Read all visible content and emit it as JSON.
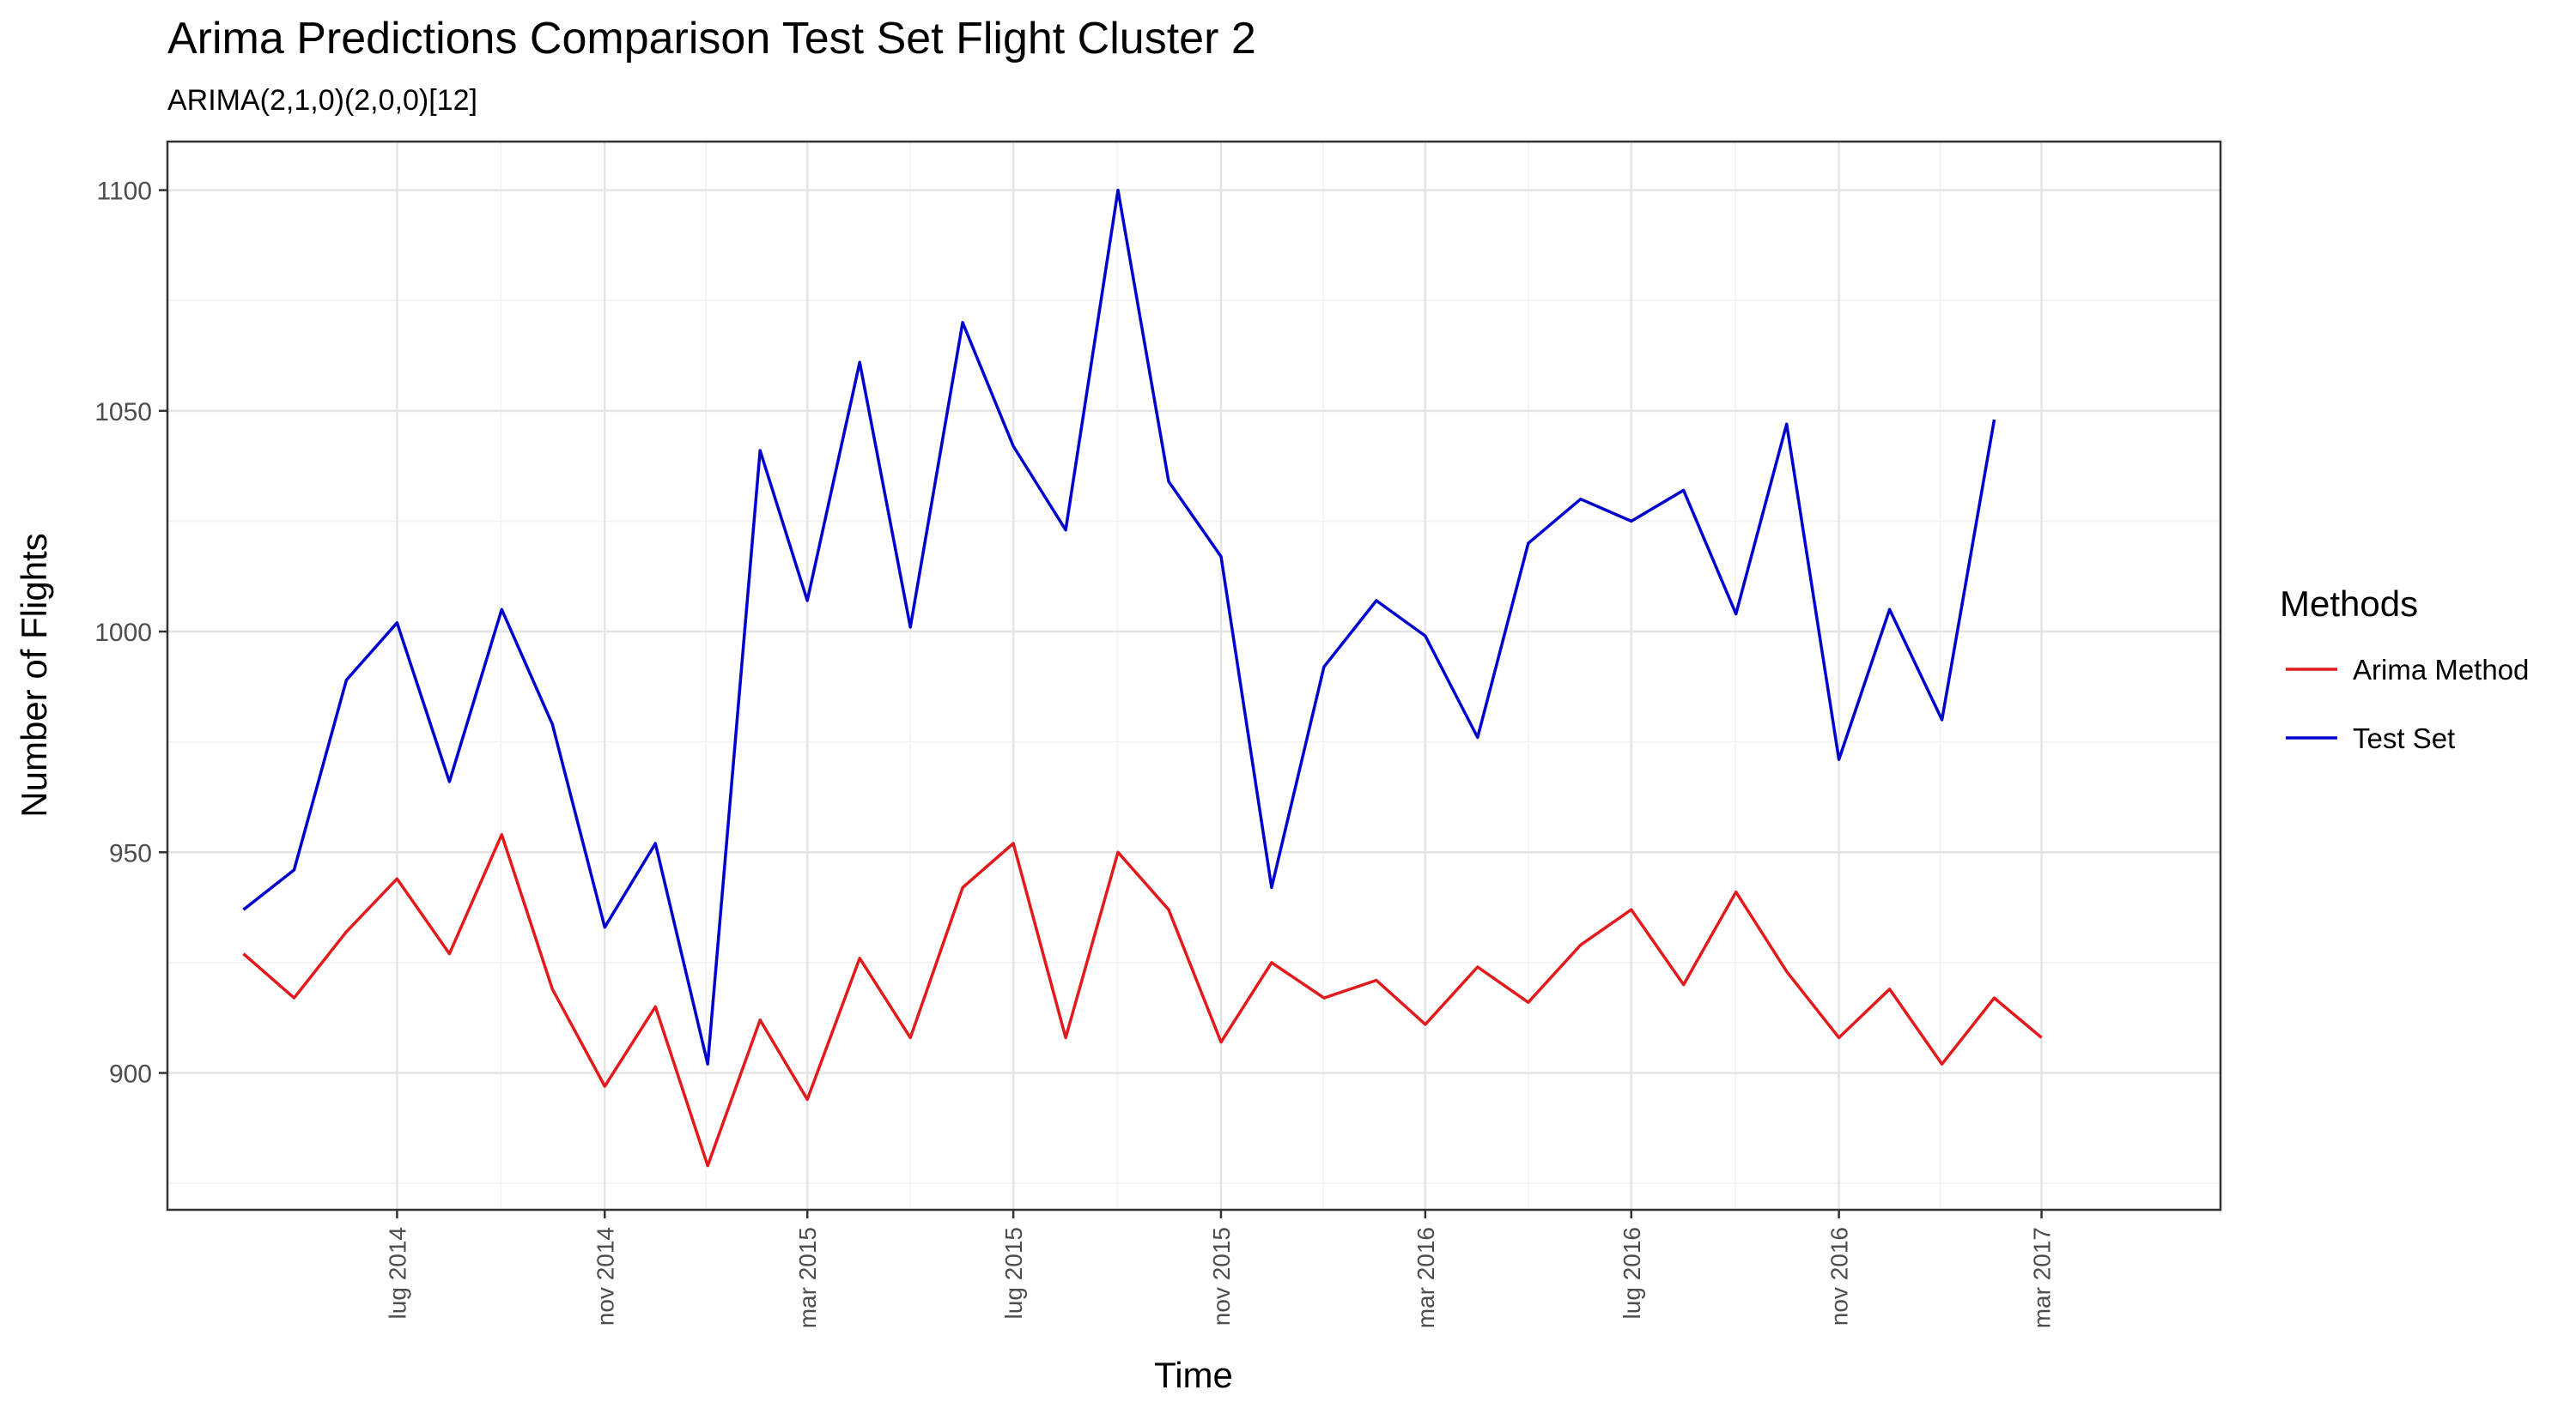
{
  "chart_data": {
    "type": "line",
    "title": "Arima Predictions Comparison Test Set Flight Cluster 2",
    "subtitle": "ARIMA(2,1,0)(2,0,0)[12]",
    "xlabel": "Time",
    "ylabel": "Number of Flights",
    "x_range": [
      "2014-02-15",
      "2017-06-15"
    ],
    "ylim": [
      869,
      1111
    ],
    "y_ticks": [
      900,
      950,
      1000,
      1050,
      1100
    ],
    "x_ticks": [
      {
        "date": "2014-07-01",
        "label": "lug 2014"
      },
      {
        "date": "2014-11-01",
        "label": "nov 2014"
      },
      {
        "date": "2015-03-01",
        "label": "mar 2015"
      },
      {
        "date": "2015-07-01",
        "label": "lug 2015"
      },
      {
        "date": "2015-11-01",
        "label": "nov 2015"
      },
      {
        "date": "2016-03-01",
        "label": "mar 2016"
      },
      {
        "date": "2016-07-01",
        "label": "lug 2016"
      },
      {
        "date": "2016-11-01",
        "label": "nov 2016"
      },
      {
        "date": "2017-03-01",
        "label": "mar 2017"
      }
    ],
    "grid": true,
    "legend": {
      "title": "Methods",
      "position": "right"
    },
    "x": [
      "2014-04-01",
      "2014-05-01",
      "2014-06-01",
      "2014-07-01",
      "2014-08-01",
      "2014-09-01",
      "2014-10-01",
      "2014-11-01",
      "2014-12-01",
      "2015-01-01",
      "2015-02-01",
      "2015-03-01",
      "2015-04-01",
      "2015-05-01",
      "2015-06-01",
      "2015-07-01",
      "2015-08-01",
      "2015-09-01",
      "2015-10-01",
      "2015-11-01",
      "2015-12-01",
      "2016-01-01",
      "2016-02-01",
      "2016-03-01",
      "2016-04-01",
      "2016-05-01",
      "2016-06-01",
      "2016-07-01",
      "2016-08-01",
      "2016-09-01",
      "2016-10-01",
      "2016-11-01",
      "2016-12-01",
      "2017-01-01",
      "2017-02-01",
      "2017-03-01",
      "2017-04-01"
    ],
    "series": [
      {
        "name": "Arima Method",
        "color": "#e31a1c",
        "values": [
          927,
          917,
          932,
          944,
          927,
          954,
          919,
          897,
          915,
          879,
          912,
          894,
          926,
          908,
          942,
          952,
          908,
          950,
          937,
          907,
          925,
          917,
          921,
          911,
          924,
          916,
          929,
          937,
          920,
          941,
          923,
          908,
          919,
          902,
          917,
          908,
          null
        ]
      },
      {
        "name": "Test Set",
        "color": "#0000cd",
        "values": [
          937,
          946,
          989,
          1002,
          966,
          1005,
          979,
          933,
          952,
          902,
          1041,
          1007,
          1061,
          1001,
          1070,
          1042,
          1023,
          1100,
          1034,
          1017,
          942,
          992,
          1007,
          999,
          976,
          1020,
          1030,
          1025,
          1032,
          1004,
          1047,
          971,
          1005,
          980,
          1048,
          null,
          null
        ]
      }
    ]
  }
}
